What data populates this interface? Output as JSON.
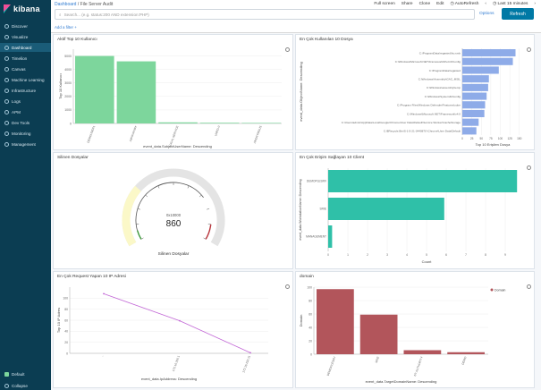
{
  "app": {
    "logo_text": "kibana"
  },
  "sidebar": {
    "items": [
      {
        "label": "Discover",
        "icon": "compass-icon",
        "active": false
      },
      {
        "label": "Visualize",
        "icon": "chart-icon",
        "active": false
      },
      {
        "label": "Dashboard",
        "icon": "dashboard-icon",
        "active": true
      },
      {
        "label": "Timelion",
        "icon": "timelion-icon",
        "active": false
      },
      {
        "label": "Canvas",
        "icon": "canvas-icon",
        "active": false
      },
      {
        "label": "Machine Learning",
        "icon": "ml-icon",
        "active": false
      },
      {
        "label": "Infrastructure",
        "icon": "infra-icon",
        "active": false
      },
      {
        "label": "Logs",
        "icon": "logs-icon",
        "active": false
      },
      {
        "label": "APM",
        "icon": "apm-icon",
        "active": false
      },
      {
        "label": "Dev Tools",
        "icon": "wrench-icon",
        "active": false
      },
      {
        "label": "Monitoring",
        "icon": "heartbeat-icon",
        "active": false
      },
      {
        "label": "Management",
        "icon": "gear-icon",
        "active": false
      }
    ],
    "bottom": [
      {
        "label": "Default",
        "icon": "space-icon"
      },
      {
        "label": "Collapse",
        "icon": "collapse-icon"
      }
    ]
  },
  "header": {
    "breadcrumb_root": "Dashboard",
    "breadcrumb_sep": "/",
    "breadcrumb_current": "File Server Audit",
    "menu": [
      "Full screen",
      "Share",
      "Clone",
      "Edit",
      "AutoRefresh"
    ],
    "time_range": "Last 15 minutes",
    "search_placeholder": "Search... (e.g. status:200 AND extension:PHP)",
    "options_label": "Options",
    "refresh_label": "Refresh",
    "add_filter": "Add a filter +"
  },
  "panels": {
    "p1": {
      "title": "Aktif Top 10 Kullanıcı",
      "ylabel": "Top 10 Kullanıcı",
      "xlabel": "event_data.SubjectUserName: Descending"
    },
    "p2": {
      "title": "En Çok Kullanılan 10 Dosya",
      "ylabel": "event_data.ObjectName: Descending",
      "xlabel": "Top 10 Erişilen Dosya"
    },
    "p3": {
      "title": "Silinen Dosyalar",
      "gauge_value": "860",
      "gauge_sub": "0x10000",
      "gauge_label": "Silinen Dosyalar"
    },
    "p4": {
      "title": "En Çok Erişim Sağlayan 10 Client",
      "ylabel": "event_data.WorkstationName: Descending",
      "xlabel": "Count"
    },
    "p5": {
      "title": "En Çok Request Yapan 10 IP Adresi",
      "ylabel": "Top 10 IP Adres",
      "xlabel": "event_data.IpAddress: Descending"
    },
    "p6": {
      "title": "domain",
      "ylabel": "Domain",
      "xlabel": "event_data.TargetDomainName: Descending",
      "legend": "Domain"
    }
  },
  "chart_data": [
    {
      "type": "bar",
      "panel": "p1",
      "title": "Aktif Top 10 Kullanıcı",
      "ylabel": "Top 10 Kullanıcı",
      "xlabel": "event_data.SubjectUserName: Descending",
      "categories": [
        "DEMOUSER1",
        "Administrator",
        "LOCAL SERVICE",
        "UMFD-0",
        "ANONYMOUS"
      ],
      "values": [
        5000,
        4600,
        80,
        50,
        30
      ],
      "ylim": [
        0,
        5500
      ],
      "yticks": [
        0,
        1000,
        2000,
        3000,
        4000,
        5000
      ],
      "color": "#7dd69c"
    },
    {
      "type": "bar",
      "panel": "p2",
      "orientation": "horizontal",
      "title": "En Çok Kullanılan 10 Dosya",
      "ylabel": "event_data.ObjectName: Descending",
      "xlabel": "Top 10 Erişilen Dosya",
      "categories": [
        "C:\\ProgramData\\regasted\\bu.smb",
        "C:\\Windows\\Microsoft.NET\\Framework64\\v4.0\\Config",
        "C:\\ProgramData\\regasted",
        "C:\\Windows\\Assembly\\GAC_MSIL",
        "C:\\Windows\\assembly\\temp",
        "C:\\Windows\\System32\\config",
        "C:\\Program Files\\Windows Defender\\Features\\oobe",
        "C:\\Windows\\Microsoft.NET\\Framework\\v4.0",
        "C:\\Users\\admin\\AppData\\Local\\Google\\Chrome\\User Data\\Default\\Service Worker\\CacheStorage",
        "C:\\$Recycle.Bin\\S-1-5-21-3440870 \\Chrome\\User Data\\Default"
      ],
      "values": [
        140,
        133,
        96,
        70,
        68,
        64,
        60,
        58,
        43,
        37
      ],
      "xlim": [
        0,
        160
      ],
      "xticks": [
        0,
        25,
        50,
        75,
        100,
        125,
        150
      ],
      "color": "#8eabe8"
    },
    {
      "type": "gauge",
      "panel": "p3",
      "value": 860,
      "label": "Silinen Dosyalar"
    },
    {
      "type": "bar",
      "panel": "p4",
      "orientation": "horizontal",
      "title": "En Çok Erişim Sağlayan 10 Client",
      "ylabel": "event_data.WorkstationName: Descending",
      "xlabel": "Count",
      "categories": [
        "DEMOPLESRV",
        "SRIE",
        "MANAGEMENT"
      ],
      "values": [
        9.6,
        5.9,
        0.2
      ],
      "xlim": [
        0,
        10
      ],
      "xticks": [
        0,
        1,
        2,
        3,
        4,
        5,
        6,
        7,
        8,
        9
      ],
      "color": "#2fc0a8"
    },
    {
      "type": "line",
      "panel": "p5",
      "title": "En Çok Request Yapan 10 IP Adresi",
      "ylabel": "Top 10 IP Adres",
      "xlabel": "event_data.IpAddress: Descending",
      "categories": [
        "-",
        "172.16.250.1",
        "172.16.250.11"
      ],
      "values": [
        108,
        59,
        1
      ],
      "ylim": [
        0,
        120
      ],
      "yticks": [
        0,
        20,
        40,
        60,
        80,
        100
      ],
      "color": "#c267d6"
    },
    {
      "type": "bar",
      "panel": "p6",
      "title": "domain",
      "ylabel": "Domain",
      "xlabel": "event_data.TargetDomainName: Descending",
      "categories": [
        "DEMOFILESRV",
        "SRIE",
        "NT AUTHORITY",
        "DEMO"
      ],
      "values": [
        97,
        59,
        6,
        3
      ],
      "ylim": [
        0,
        100
      ],
      "yticks": [
        0,
        20,
        40,
        60,
        80,
        100
      ],
      "color": "#b2555b",
      "legend": "Domain"
    }
  ]
}
